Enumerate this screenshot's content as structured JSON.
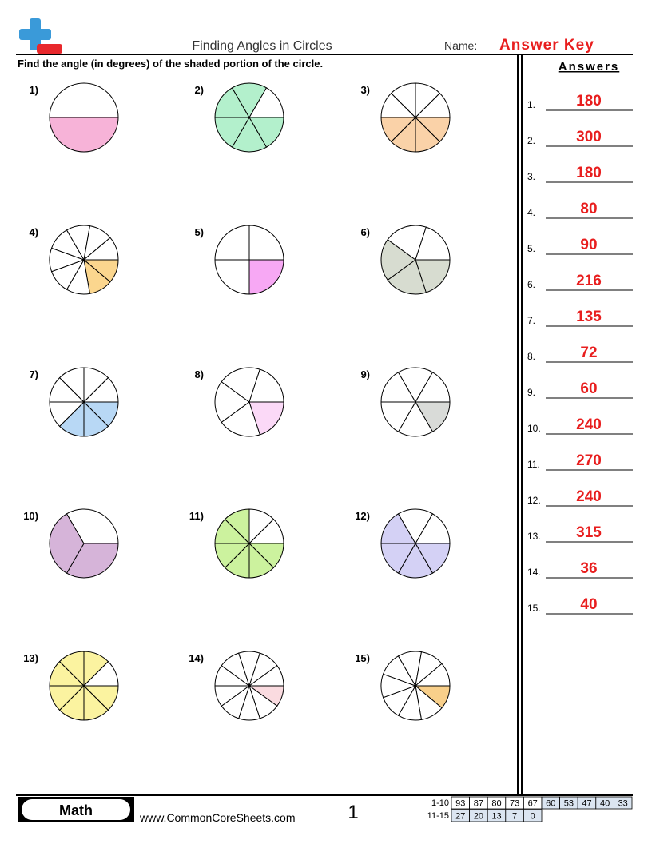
{
  "header": {
    "title": "Finding Angles in Circles",
    "name_label": "Name:",
    "name_value": "Answer Key",
    "instructions": "Find the angle (in degrees) of the shaded portion of the circle."
  },
  "problems": [
    {
      "label": "1)",
      "slices": 2,
      "shaded": 1,
      "color": "#f7b3d8"
    },
    {
      "label": "2)",
      "slices": 6,
      "shaded": 5,
      "color": "#b3f0cc"
    },
    {
      "label": "3)",
      "slices": 8,
      "shaded": 4,
      "color": "#fad2a8"
    },
    {
      "label": "4)",
      "slices": 9,
      "shaded": 2,
      "color": "#fbd68e"
    },
    {
      "label": "5)",
      "slices": 4,
      "shaded": 1,
      "color": "#f7a8f4"
    },
    {
      "label": "6)",
      "slices": 5,
      "shaded": 3,
      "color": "#d7dcd0"
    },
    {
      "label": "7)",
      "slices": 8,
      "shaded": 3,
      "color": "#b8d8f5"
    },
    {
      "label": "8)",
      "slices": 5,
      "shaded": 1,
      "color": "#fbd9f7"
    },
    {
      "label": "9)",
      "slices": 6,
      "shaded": 1,
      "color": "#d9dbd8"
    },
    {
      "label": "10)",
      "slices": 3,
      "shaded": 2,
      "color": "#d6b4d9"
    },
    {
      "label": "11)",
      "slices": 8,
      "shaded": 6,
      "color": "#ccf29e"
    },
    {
      "label": "12)",
      "slices": 6,
      "shaded": 4,
      "color": "#d4d1f5"
    },
    {
      "label": "13)",
      "slices": 8,
      "shaded": 7,
      "color": "#fbf3a0"
    },
    {
      "label": "14)",
      "slices": 10,
      "shaded": 1,
      "color": "#fadbe0"
    },
    {
      "label": "15)",
      "slices": 9,
      "shaded": 1,
      "color": "#f8cf8a"
    }
  ],
  "answer_key": {
    "title": "Answers",
    "items": [
      {
        "label": "1.",
        "answer": 180
      },
      {
        "label": "2.",
        "answer": 300
      },
      {
        "label": "3.",
        "answer": 180
      },
      {
        "label": "4.",
        "answer": 80
      },
      {
        "label": "5.",
        "answer": 90
      },
      {
        "label": "6.",
        "answer": 216
      },
      {
        "label": "7.",
        "answer": 135
      },
      {
        "label": "8.",
        "answer": 72
      },
      {
        "label": "9.",
        "answer": 60
      },
      {
        "label": "10.",
        "answer": 240
      },
      {
        "label": "11.",
        "answer": 270
      },
      {
        "label": "12.",
        "answer": 240
      },
      {
        "label": "13.",
        "answer": 315
      },
      {
        "label": "14.",
        "answer": 36
      },
      {
        "label": "15.",
        "answer": 40
      }
    ]
  },
  "footer": {
    "subject": "Math",
    "website": "www.CommonCoreSheets.com",
    "page": "1",
    "score_table": [
      {
        "label": "1-10",
        "scores": [
          93,
          87,
          80,
          73,
          67,
          60,
          53,
          47,
          40,
          33
        ]
      },
      {
        "label": "11-15",
        "scores": [
          27,
          20,
          13,
          7,
          0
        ]
      }
    ]
  }
}
